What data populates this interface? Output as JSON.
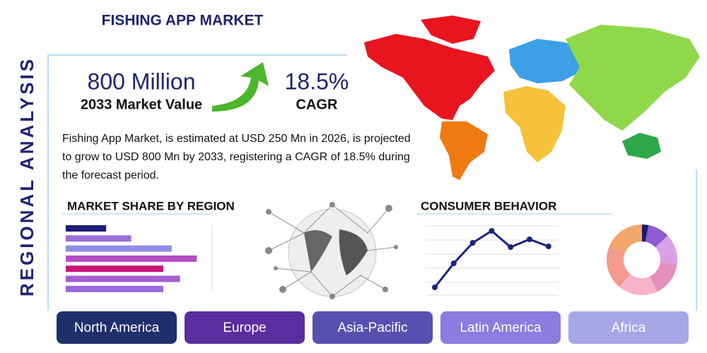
{
  "side_title": "REGIONAL ANALYSIS",
  "header": {
    "title": "FISHING APP MARKET"
  },
  "stats": [
    {
      "value": "800 Million",
      "label": "2033 Market Value"
    },
    {
      "value": "18.5%",
      "label": "CAGR"
    }
  ],
  "description": "Fishing App Market, is estimated at USD 250 Mn in 2026, is projected to grow to USD 800 Mn by 2033, registering a CAGR of 18.5% during the forecast period.",
  "market_share": {
    "title": "MARKET SHARE BY REGION",
    "xlim": [
      0,
      210
    ],
    "values": [
      58,
      94,
      152,
      188,
      140,
      164,
      140
    ],
    "colors": [
      "#1c1c7a",
      "#9b6fd6",
      "#8e8ee8",
      "#b44cc1",
      "#c8157a",
      "#a55fd0",
      "#9a68d8"
    ]
  },
  "consumer_behavior": {
    "title": "CONSUMER BEHAVIOR",
    "ylim": [
      0,
      100
    ],
    "values": [
      11,
      45,
      74,
      91,
      68,
      79,
      69
    ],
    "color": "#1a237e"
  },
  "donut": {
    "values": [
      3,
      10,
      14,
      16,
      18,
      20,
      19
    ],
    "colors": [
      "#1a1a6e",
      "#8e5bd0",
      "#d9a0e8",
      "#e58fbf",
      "#f7b3c9",
      "#f59a8f",
      "#f2a66a"
    ]
  },
  "regions": [
    "North America",
    "Europe",
    "Asia-Pacific",
    "Latin America",
    "Africa"
  ]
}
